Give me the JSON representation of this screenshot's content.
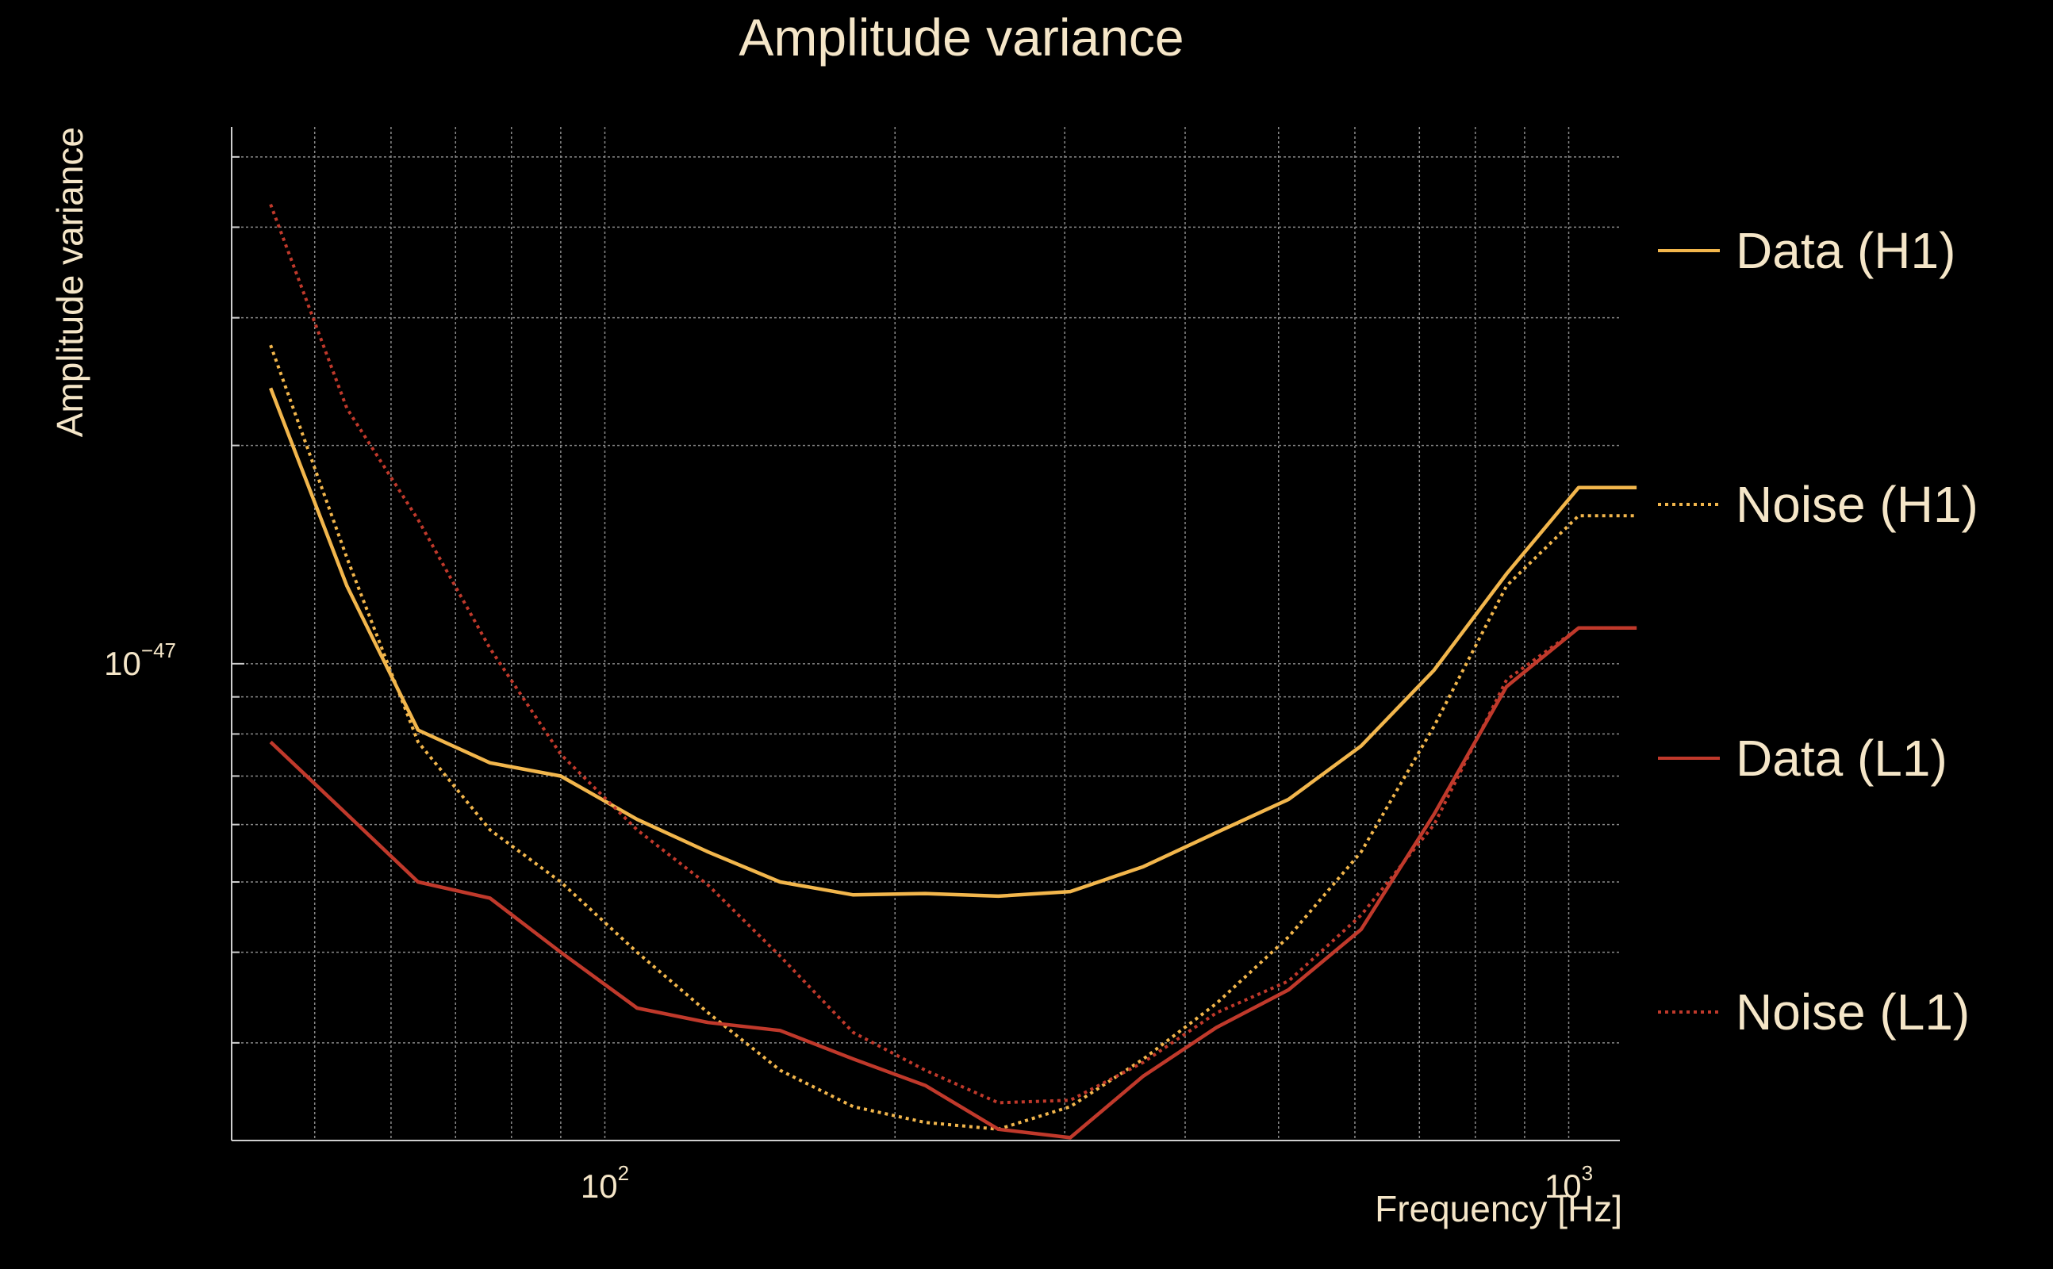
{
  "chart_data": {
    "type": "line",
    "title": "Amplitude variance",
    "xlabel": "Frequency [Hz]",
    "ylabel": "Amplitude variance",
    "xscale": "log",
    "yscale": "log",
    "xlim": [
      41,
      1130
    ],
    "ylim": [
      2.2e-48,
      5.5e-47
    ],
    "x_ticks": [
      {
        "value": 100,
        "base": "10",
        "exp": "2"
      },
      {
        "value": 1000,
        "base": "10",
        "exp": "3"
      }
    ],
    "y_ticks": [
      {
        "value": 1e-47,
        "base": "10",
        "exp": "−47"
      }
    ],
    "grid": true,
    "legend_position": "right",
    "series": [
      {
        "name": "Data (H1)",
        "color": "#f2b64c",
        "style": "solid",
        "x": [
          45,
          54,
          64,
          76,
          90,
          108,
          128,
          152,
          181,
          215,
          256,
          304,
          362,
          431,
          512,
          609,
          725,
          862,
          1024,
          1176
        ],
        "y": [
          2.4e-47,
          1.28e-47,
          8.1e-48,
          7.3e-48,
          7e-48,
          6.1e-48,
          5.5e-48,
          5e-48,
          4.8e-48,
          4.82e-48,
          4.78e-48,
          4.85e-48,
          5.25e-48,
          5.85e-48,
          6.5e-48,
          7.7e-48,
          9.8e-48,
          1.33e-47,
          1.75e-47,
          1.75e-47
        ]
      },
      {
        "name": "Noise (H1)",
        "color": "#f2b64c",
        "style": "dotted",
        "x": [
          45,
          54,
          64,
          76,
          90,
          108,
          128,
          152,
          181,
          215,
          256,
          304,
          362,
          431,
          512,
          609,
          725,
          862,
          1024,
          1176
        ],
        "y": [
          2.75e-47,
          1.4e-47,
          7.8e-48,
          5.9e-48,
          5e-48,
          4e-48,
          3.3e-48,
          2.75e-48,
          2.45e-48,
          2.33e-48,
          2.28e-48,
          2.45e-48,
          2.85e-48,
          3.4e-48,
          4.2e-48,
          5.5e-48,
          8.2e-48,
          1.28e-47,
          1.6e-47,
          1.6e-47
        ]
      },
      {
        "name": "Data (L1)",
        "color": "#c0392b",
        "style": "solid",
        "x": [
          45,
          54,
          64,
          76,
          90,
          108,
          128,
          152,
          181,
          215,
          256,
          304,
          362,
          431,
          512,
          609,
          725,
          862,
          1024,
          1176
        ],
        "y": [
          7.8e-48,
          6.2e-48,
          5e-48,
          4.75e-48,
          4e-48,
          3.35e-48,
          3.2e-48,
          3.12e-48,
          2.85e-48,
          2.62e-48,
          2.28e-48,
          2.22e-48,
          2.7e-48,
          3.15e-48,
          3.55e-48,
          4.3e-48,
          6.2e-48,
          9.3e-48,
          1.12e-47,
          1.12e-47
        ]
      },
      {
        "name": "Noise (L1)",
        "color": "#c0392b",
        "style": "dotted",
        "x": [
          45,
          54,
          64,
          76,
          90,
          108,
          128,
          152,
          181,
          215,
          256,
          304,
          362,
          431,
          512,
          609,
          725,
          862,
          1024,
          1176
        ],
        "y": [
          4.3e-47,
          2.25e-47,
          1.58e-47,
          1.05e-47,
          7.5e-48,
          5.9e-48,
          4.95e-48,
          3.95e-48,
          3.1e-48,
          2.75e-48,
          2.48e-48,
          2.5e-48,
          2.82e-48,
          3.3e-48,
          3.65e-48,
          4.5e-48,
          6e-48,
          9.5e-48,
          1.12e-47,
          1.12e-47
        ]
      }
    ]
  }
}
